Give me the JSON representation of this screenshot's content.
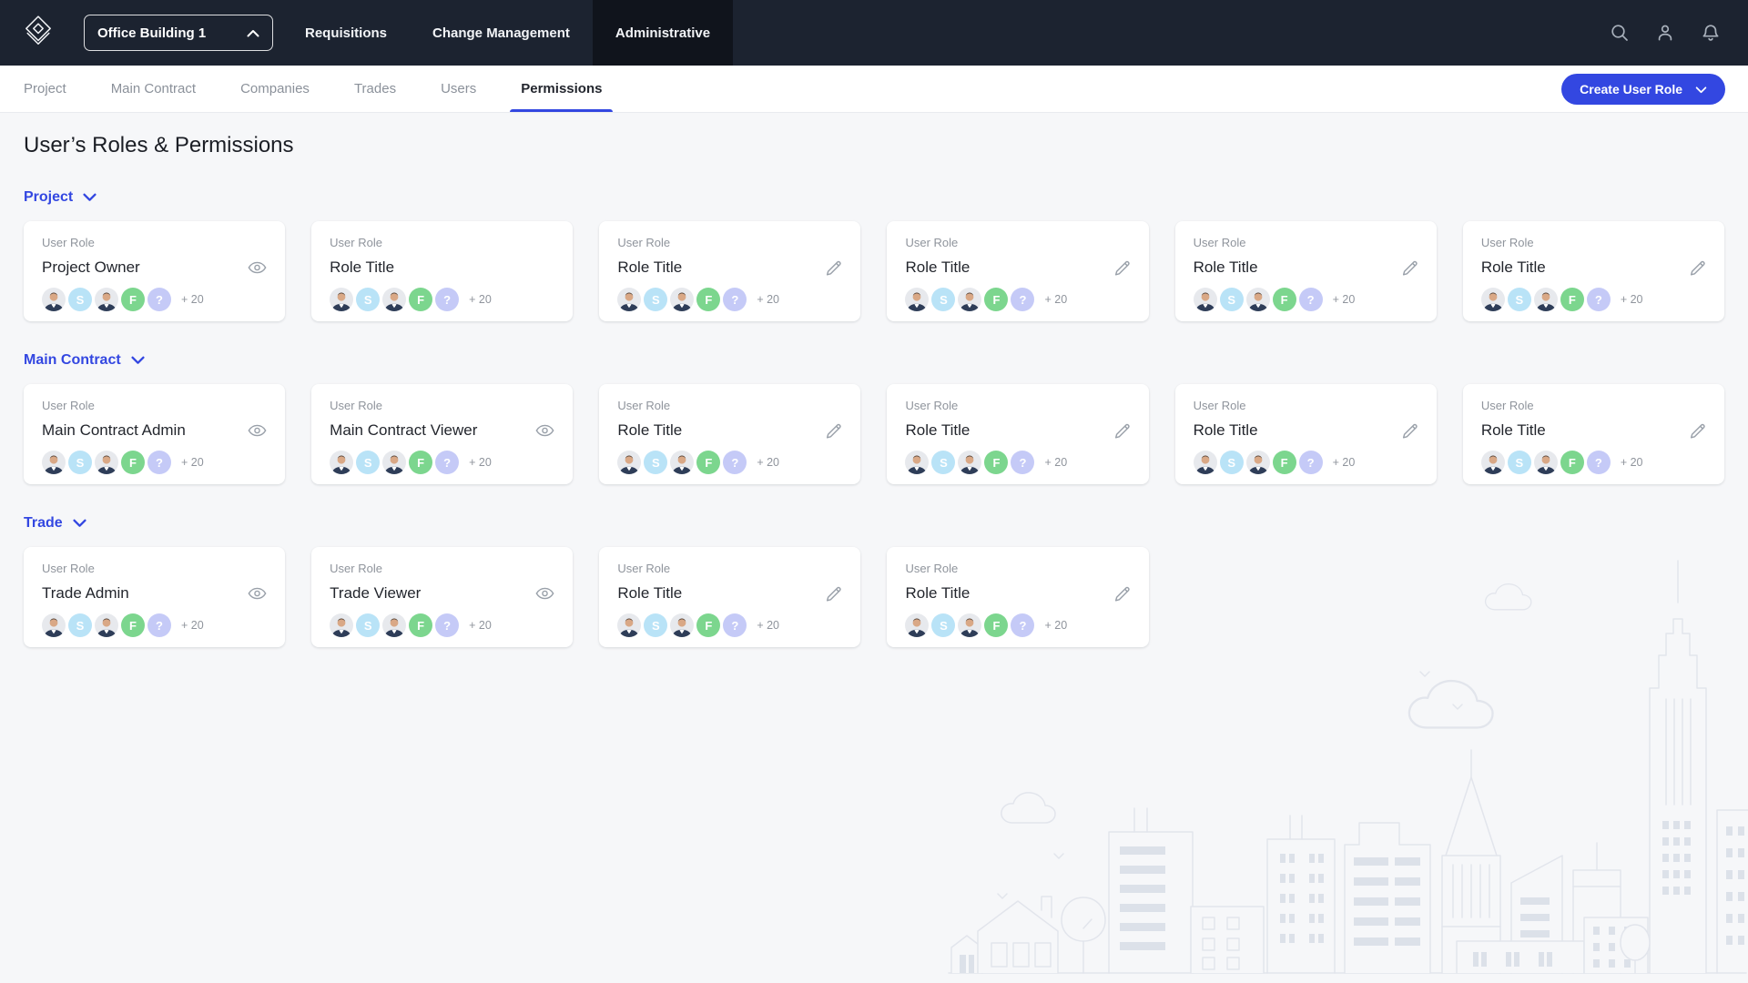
{
  "brand": {
    "accent": "#3347E1",
    "topbar_bg": "#1C2330",
    "topbar_active_bg": "#10141C",
    "page_bg": "#F6F7F9"
  },
  "topbar": {
    "logo_icon": "layered-diamond-logo-icon",
    "project_selector": {
      "label": "Office Building 1",
      "icon": "chevron-up-icon"
    },
    "nav": [
      {
        "label": "Requisitions",
        "active": false
      },
      {
        "label": "Change Management",
        "active": false
      },
      {
        "label": "Administrative",
        "active": true
      }
    ],
    "icons": [
      "search-icon",
      "user-icon",
      "bell-icon"
    ]
  },
  "tabs": {
    "items": [
      {
        "label": "Project",
        "active": false
      },
      {
        "label": "Main Contract",
        "active": false
      },
      {
        "label": "Companies",
        "active": false
      },
      {
        "label": "Trades",
        "active": false
      },
      {
        "label": "Users",
        "active": false
      },
      {
        "label": "Permissions",
        "active": true
      }
    ],
    "create_button": {
      "label": "Create User Role",
      "icon": "chevron-down-icon"
    }
  },
  "page": {
    "title": "User’s Roles & Permissions"
  },
  "card_kicker": "User Role",
  "avatar_group": {
    "avatars": [
      {
        "type": "photo"
      },
      {
        "type": "initials",
        "text": "S",
        "bg": "#B9E3F7"
      },
      {
        "type": "photo"
      },
      {
        "type": "initials",
        "text": "F",
        "bg": "#7CD68E"
      },
      {
        "type": "initials",
        "text": "?",
        "bg": "#C5CAF7"
      }
    ],
    "more_label": "+ 20"
  },
  "sections": [
    {
      "label": "Project",
      "cards": [
        {
          "title": "Project Owner",
          "action": "view"
        },
        {
          "title": "Role Title",
          "action": "none"
        },
        {
          "title": "Role Title",
          "action": "edit"
        },
        {
          "title": "Role Title",
          "action": "edit"
        },
        {
          "title": "Role Title",
          "action": "edit"
        },
        {
          "title": "Role Title",
          "action": "edit"
        }
      ]
    },
    {
      "label": "Main Contract",
      "cards": [
        {
          "title": "Main Contract Admin",
          "action": "view"
        },
        {
          "title": "Main Contract Viewer",
          "action": "view"
        },
        {
          "title": "Role Title",
          "action": "edit"
        },
        {
          "title": "Role Title",
          "action": "edit"
        },
        {
          "title": "Role Title",
          "action": "edit"
        },
        {
          "title": "Role Title",
          "action": "edit"
        }
      ]
    },
    {
      "label": "Trade",
      "cards": [
        {
          "title": "Trade Admin",
          "action": "view"
        },
        {
          "title": "Trade Viewer",
          "action": "view"
        },
        {
          "title": "Role Title",
          "action": "edit"
        },
        {
          "title": "Role Title",
          "action": "edit"
        }
      ]
    }
  ]
}
